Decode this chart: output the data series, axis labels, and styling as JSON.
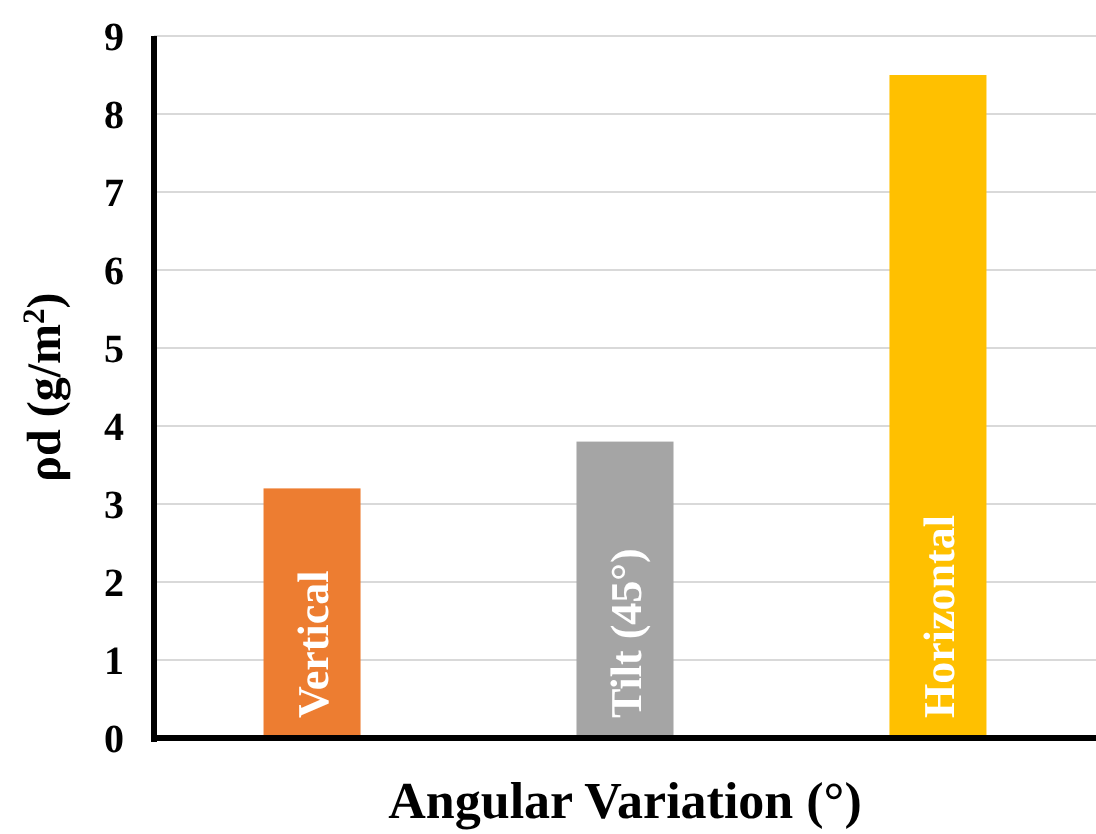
{
  "chart_data": {
    "type": "bar",
    "xlabel": "Angular Variation (°)",
    "ylabel": "ρd (g/m$^{2}$)",
    "categories": [
      "Vertical",
      "Tilt (45°)",
      "Horizontal"
    ],
    "values": [
      3.2,
      3.8,
      8.5
    ],
    "colors": [
      "#ed7d31",
      "#a5a5a5",
      "#ffc000"
    ],
    "ylim": [
      0,
      9
    ],
    "yticks": [
      0,
      1,
      2,
      3,
      4,
      5,
      6,
      7,
      8,
      9
    ],
    "grid": "y"
  }
}
